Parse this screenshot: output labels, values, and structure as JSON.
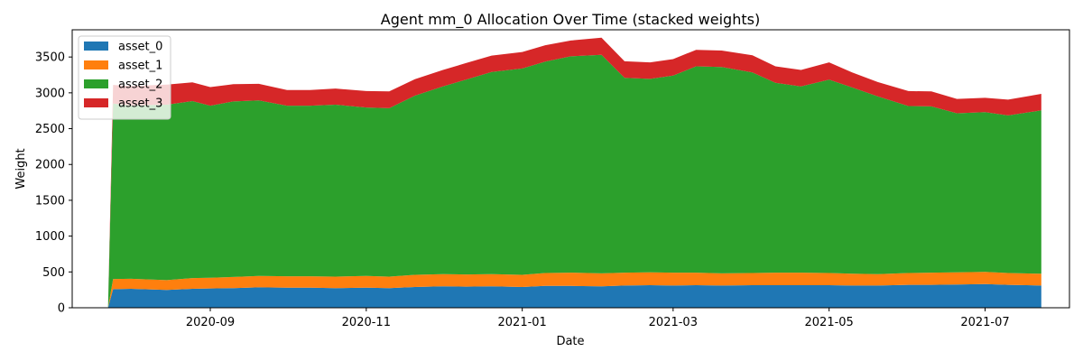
{
  "chart_data": {
    "type": "area",
    "stacked": true,
    "title": "Agent mm_0 Allocation Over Time (stacked weights)",
    "xlabel": "Date",
    "ylabel": "Weight",
    "xlim": [
      "2020-07-09",
      "2021-08-03"
    ],
    "ylim": [
      0,
      3880
    ],
    "x_ticks": [
      {
        "date": "2020-09-01",
        "label": "2020-09"
      },
      {
        "date": "2020-11-01",
        "label": "2020-11"
      },
      {
        "date": "2021-01-01",
        "label": "2021-01"
      },
      {
        "date": "2021-03-01",
        "label": "2021-03"
      },
      {
        "date": "2021-05-01",
        "label": "2021-05"
      },
      {
        "date": "2021-07-01",
        "label": "2021-07"
      }
    ],
    "y_ticks": [
      0,
      500,
      1000,
      1500,
      2000,
      2500,
      3000,
      3500
    ],
    "grid": false,
    "legend": "top-left",
    "dates": [
      "2020-07-23",
      "2020-07-25",
      "2020-08-01",
      "2020-08-15",
      "2020-08-25",
      "2020-09-01",
      "2020-09-10",
      "2020-09-20",
      "2020-10-01",
      "2020-10-10",
      "2020-10-20",
      "2020-11-01",
      "2020-11-10",
      "2020-11-20",
      "2020-12-01",
      "2020-12-10",
      "2020-12-20",
      "2021-01-01",
      "2021-01-10",
      "2021-01-20",
      "2021-02-01",
      "2021-02-10",
      "2021-02-20",
      "2021-03-01",
      "2021-03-10",
      "2021-03-20",
      "2021-04-01",
      "2021-04-10",
      "2021-04-20",
      "2021-05-01",
      "2021-05-10",
      "2021-05-20",
      "2021-06-01",
      "2021-06-10",
      "2021-06-20",
      "2021-07-01",
      "2021-07-10",
      "2021-07-23"
    ],
    "series": [
      {
        "name": "asset_0",
        "color": "#1f77b4",
        "values": [
          0,
          260,
          265,
          250,
          265,
          270,
          275,
          285,
          280,
          280,
          275,
          280,
          275,
          290,
          300,
          295,
          300,
          290,
          305,
          305,
          300,
          310,
          315,
          310,
          315,
          310,
          315,
          315,
          315,
          315,
          310,
          310,
          320,
          320,
          325,
          330,
          320,
          310
        ]
      },
      {
        "name": "asset_1",
        "color": "#ff7f0e",
        "values": [
          0,
          140,
          140,
          135,
          150,
          150,
          155,
          160,
          160,
          160,
          160,
          165,
          160,
          170,
          170,
          170,
          170,
          170,
          180,
          185,
          180,
          180,
          180,
          180,
          175,
          170,
          170,
          175,
          175,
          170,
          165,
          160,
          165,
          170,
          170,
          170,
          165,
          165
        ]
      },
      {
        "name": "asset_2",
        "color": "#2ca02c",
        "values": [
          0,
          2450,
          2420,
          2450,
          2470,
          2400,
          2450,
          2450,
          2380,
          2380,
          2400,
          2350,
          2350,
          2500,
          2620,
          2720,
          2820,
          2880,
          2950,
          3020,
          3050,
          2720,
          2700,
          2750,
          2880,
          2880,
          2800,
          2650,
          2600,
          2700,
          2600,
          2480,
          2330,
          2320,
          2220,
          2230,
          2200,
          2280
        ]
      },
      {
        "name": "asset_3",
        "color": "#d62728",
        "values": [
          0,
          260,
          270,
          280,
          260,
          260,
          240,
          230,
          220,
          220,
          225,
          230,
          235,
          230,
          230,
          230,
          230,
          230,
          230,
          220,
          240,
          230,
          230,
          230,
          230,
          230,
          240,
          230,
          230,
          240,
          210,
          200,
          210,
          210,
          200,
          200,
          220,
          230
        ]
      }
    ]
  }
}
